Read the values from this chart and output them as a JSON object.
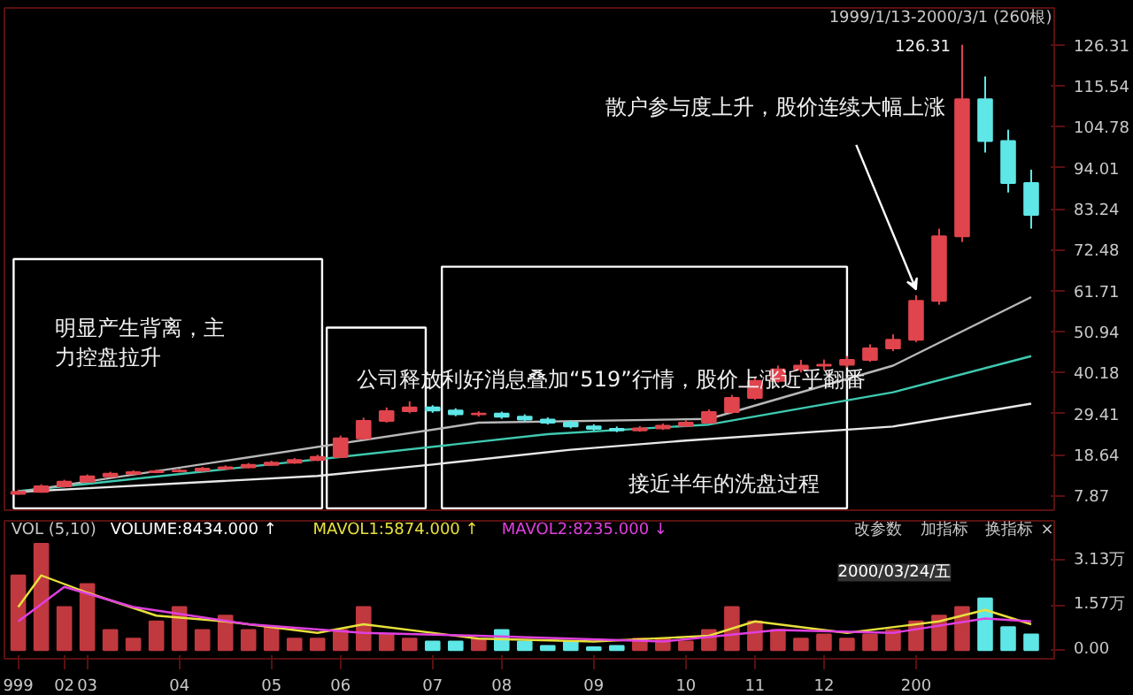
{
  "chart_data": [
    {
      "type": "candlestick",
      "subtitle": "1999/1/13-2000/3/1 (260根)",
      "categories": [
        "999",
        null,
        "02",
        "03",
        null,
        null,
        null,
        "04",
        null,
        null,
        null,
        "05",
        null,
        null,
        "06",
        null,
        null,
        null,
        "07",
        null,
        null,
        "08",
        null,
        null,
        null,
        "09",
        null,
        null,
        null,
        "10",
        null,
        null,
        "11",
        null,
        null,
        "12",
        null,
        null,
        null,
        "200",
        null,
        null,
        null,
        null,
        null
      ],
      "ohlc": [
        [
          8.3,
          9.4,
          8.1,
          8.8
        ],
        [
          8.8,
          10.8,
          8.6,
          10.3
        ],
        [
          10.3,
          12.0,
          10.0,
          11.5
        ],
        [
          11.5,
          13.4,
          11.2,
          12.9
        ],
        [
          12.9,
          14.1,
          12.6,
          13.6
        ],
        [
          13.6,
          14.5,
          13.3,
          14.0
        ],
        [
          14.0,
          14.7,
          13.7,
          14.2
        ],
        [
          14.2,
          14.9,
          13.9,
          14.4
        ],
        [
          14.4,
          15.4,
          14.1,
          14.9
        ],
        [
          14.9,
          15.8,
          14.6,
          15.3
        ],
        [
          15.3,
          16.4,
          15.0,
          15.9
        ],
        [
          15.9,
          17.0,
          15.6,
          16.5
        ],
        [
          16.5,
          17.7,
          16.2,
          17.2
        ],
        [
          17.2,
          18.6,
          16.9,
          18.0
        ],
        [
          18.0,
          23.6,
          17.7,
          22.9
        ],
        [
          22.9,
          28.3,
          22.5,
          27.5
        ],
        [
          27.5,
          31.0,
          27.0,
          30.0
        ],
        [
          30.0,
          32.6,
          29.5,
          31.0
        ],
        [
          31.0,
          31.6,
          29.6,
          30.2
        ],
        [
          30.2,
          30.8,
          28.7,
          29.2
        ],
        [
          29.2,
          30.0,
          28.6,
          29.4
        ],
        [
          29.4,
          29.9,
          28.0,
          28.6
        ],
        [
          28.6,
          29.2,
          27.3,
          27.8
        ],
        [
          27.8,
          28.4,
          26.5,
          27.0
        ],
        [
          27.0,
          27.6,
          25.5,
          26.0
        ],
        [
          26.0,
          26.6,
          24.9,
          25.4
        ],
        [
          25.4,
          26.0,
          24.5,
          25.0
        ],
        [
          25.0,
          26.1,
          24.6,
          25.5
        ],
        [
          25.5,
          26.8,
          25.1,
          26.2
        ],
        [
          26.2,
          27.6,
          25.8,
          27.0
        ],
        [
          27.0,
          30.5,
          26.7,
          29.8
        ],
        [
          29.8,
          34.3,
          29.4,
          33.5
        ],
        [
          33.5,
          38.9,
          33.0,
          38.0
        ],
        [
          38.0,
          42.0,
          37.5,
          41.0
        ],
        [
          41.0,
          43.5,
          40.2,
          42.0
        ],
        [
          42.0,
          43.6,
          40.8,
          42.2
        ],
        [
          42.2,
          44.5,
          41.5,
          43.5
        ],
        [
          43.5,
          47.6,
          43.0,
          46.5
        ],
        [
          46.5,
          50.2,
          45.8,
          48.8
        ],
        [
          48.8,
          60.5,
          48.2,
          59.0
        ],
        [
          59.0,
          78.0,
          58.0,
          76.0
        ],
        [
          76.0,
          126.31,
          74.5,
          112.0
        ],
        [
          112.0,
          118.0,
          98.0,
          101.0
        ],
        [
          101.0,
          104.0,
          87.5,
          90.0
        ],
        [
          90.0,
          93.5,
          78.0,
          81.6
        ]
      ],
      "colors": [
        "#e0444c",
        "#e0444c",
        "#e0444c",
        "#e0444c",
        "#e0444c",
        "#e0444c",
        "#e0444c",
        "#e0444c",
        "#e0444c",
        "#e0444c",
        "#e0444c",
        "#e0444c",
        "#e0444c",
        "#e0444c",
        "#e0444c",
        "#e0444c",
        "#e0444c",
        "#e0444c",
        "#5fe6e6",
        "#5fe6e6",
        "#e0444c",
        "#5fe6e6",
        "#5fe6e6",
        "#5fe6e6",
        "#5fe6e6",
        "#5fe6e6",
        "#5fe6e6",
        "#e0444c",
        "#e0444c",
        "#e0444c",
        "#e0444c",
        "#e0444c",
        "#e0444c",
        "#e0444c",
        "#e0444c",
        "#e0444c",
        "#e0444c",
        "#e0444c",
        "#e0444c",
        "#e0444c",
        "#e0444c",
        "#e0444c",
        "#5fe6e6",
        "#5fe6e6",
        "#5fe6e6"
      ],
      "series": [
        {
          "type": "line",
          "color": "#e8e8e8",
          "values": [
            8.8,
            null,
            null,
            null,
            null,
            null,
            null,
            null,
            null,
            null,
            null,
            null,
            null,
            13,
            null,
            null,
            null,
            null,
            16,
            null,
            null,
            null,
            null,
            null,
            19.9,
            null,
            null,
            null,
            null,
            22.3,
            null,
            null,
            null,
            null,
            null,
            null,
            null,
            null,
            26,
            null,
            null,
            null,
            null,
            null,
            32
          ]
        },
        {
          "type": "line",
          "color": "#3fc9b0",
          "values": [
            9,
            null,
            null,
            null,
            null,
            null,
            null,
            null,
            null,
            null,
            null,
            null,
            null,
            null,
            18,
            null,
            null,
            null,
            null,
            null,
            null,
            null,
            null,
            24,
            null,
            null,
            null,
            null,
            null,
            null,
            26.5,
            null,
            null,
            null,
            null,
            null,
            null,
            null,
            35,
            null,
            null,
            null,
            null,
            null,
            44.5
          ]
        },
        {
          "type": "line",
          "color": "#b8b8b8",
          "values": [
            8.8,
            null,
            null,
            null,
            null,
            null,
            null,
            null,
            null,
            null,
            null,
            null,
            null,
            null,
            null,
            null,
            null,
            null,
            null,
            null,
            27,
            null,
            null,
            null,
            null,
            null,
            null,
            null,
            null,
            null,
            28,
            null,
            null,
            null,
            null,
            null,
            null,
            null,
            42,
            null,
            null,
            null,
            null,
            null,
            60
          ]
        }
      ],
      "ylim": [
        4,
        136
      ],
      "yticks": [
        7.87,
        18.64,
        29.41,
        40.18,
        50.94,
        61.71,
        72.48,
        83.24,
        94.01,
        104.78,
        115.54,
        126.31
      ],
      "tick_labels": "y",
      "annotations": [
        "明显产生背离，主力控盘拉升",
        "公司释放利好消息叠加“519”行情，股价上涨近乎翻番",
        "接近半年的洗盘过程",
        {
          "text": "散户参与度上升，股价连续大幅上涨",
          "x": "200",
          "y": 62
        },
        "126.31"
      ]
    },
    {
      "type": "bar",
      "categories": [
        "999",
        null,
        "02",
        "03",
        null,
        null,
        null,
        "04",
        null,
        null,
        null,
        "05",
        null,
        null,
        "06",
        null,
        null,
        null,
        "07",
        null,
        null,
        "08",
        null,
        null,
        null,
        "09",
        null,
        null,
        null,
        "10",
        null,
        null,
        "11",
        null,
        null,
        "12",
        null,
        null,
        null,
        "200",
        null,
        null,
        null,
        null,
        null
      ],
      "values": [
        2.6,
        3.7,
        1.5,
        2.3,
        0.7,
        0.4,
        1.0,
        1.5,
        0.7,
        1.2,
        0.7,
        0.8,
        0.4,
        0.4,
        0.7,
        1.5,
        0.55,
        0.4,
        0.3,
        0.3,
        0.4,
        0.7,
        0.3,
        0.15,
        0.3,
        0.1,
        0.15,
        0.4,
        0.4,
        0.3,
        0.7,
        1.5,
        1.0,
        0.7,
        0.4,
        0.55,
        0.4,
        0.55,
        0.7,
        1.0,
        1.2,
        1.5,
        1.8,
        0.8,
        0.55
      ],
      "colors": [
        "#c0393f",
        "#c0393f",
        "#c0393f",
        "#c0393f",
        "#c0393f",
        "#c0393f",
        "#c0393f",
        "#c0393f",
        "#c0393f",
        "#c0393f",
        "#c0393f",
        "#c0393f",
        "#c0393f",
        "#c0393f",
        "#c0393f",
        "#c0393f",
        "#c0393f",
        "#c0393f",
        "#5fe6e6",
        "#5fe6e6",
        "#c0393f",
        "#5fe6e6",
        "#5fe6e6",
        "#5fe6e6",
        "#5fe6e6",
        "#5fe6e6",
        "#5fe6e6",
        "#c0393f",
        "#c0393f",
        "#c0393f",
        "#c0393f",
        "#c0393f",
        "#c0393f",
        "#c0393f",
        "#c0393f",
        "#c0393f",
        "#c0393f",
        "#c0393f",
        "#c0393f",
        "#c0393f",
        "#c0393f",
        "#c0393f",
        "#5fe6e6",
        "#5fe6e6",
        "#5fe6e6"
      ],
      "series": [
        {
          "type": "line",
          "color": "#e8e03c",
          "values": [
            1.5,
            2.6,
            null,
            2.0,
            null,
            null,
            1.2,
            null,
            null,
            1.0,
            null,
            null,
            null,
            0.6,
            null,
            0.9,
            null,
            null,
            null,
            null,
            0.4,
            null,
            null,
            null,
            null,
            0.3,
            null,
            null,
            null,
            null,
            0.5,
            null,
            1.0,
            null,
            null,
            null,
            0.6,
            null,
            null,
            null,
            1.0,
            null,
            1.4,
            null,
            0.9
          ]
        },
        {
          "type": "line",
          "color": "#e040e0",
          "values": [
            1.0,
            null,
            2.2,
            null,
            null,
            1.5,
            null,
            null,
            null,
            null,
            0.9,
            null,
            null,
            null,
            null,
            0.6,
            null,
            null,
            null,
            null,
            0.5,
            null,
            null,
            null,
            null,
            null,
            null,
            null,
            0.3,
            null,
            null,
            null,
            null,
            0.7,
            null,
            null,
            null,
            null,
            0.6,
            null,
            null,
            null,
            1.1,
            null,
            1.0
          ]
        }
      ],
      "ylim": [
        -0.3,
        4.5
      ],
      "yticks": [
        {
          "value": 0,
          "label": "0.00"
        },
        {
          "value": 1.57,
          "label": "1.57万"
        },
        {
          "value": 3.13,
          "label": "3.13万"
        }
      ],
      "annotations": [
        "VOL (5,10)",
        "VOLUME:8434.000 ↑",
        "MAVOL1:5874.000 ↑",
        "MAVOL2:8235.000 ↓",
        "改参数",
        "加指标",
        "换指标",
        "×",
        "2000/03/24/五"
      ]
    }
  ]
}
